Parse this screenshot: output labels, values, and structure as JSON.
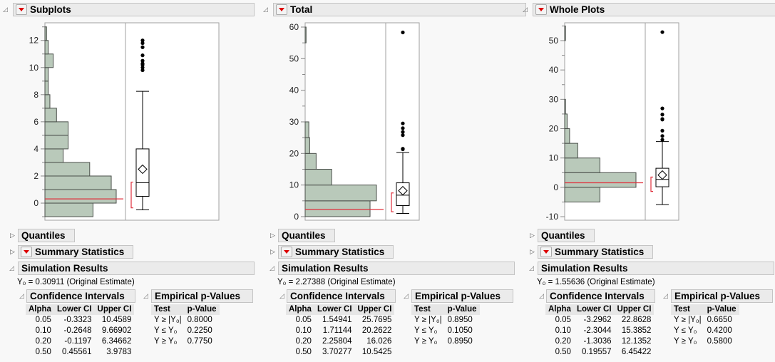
{
  "panels": [
    {
      "title": "Subplots",
      "quantiles_label": "Quantiles",
      "summary_label": "Summary Statistics",
      "simulation_label": "Simulation Results",
      "y0_text": "Y₀ = 0.30911 (Original Estimate)",
      "ci_title": "Confidence Intervals",
      "pv_title": "Empirical p-Values",
      "ci_headers": [
        "Alpha",
        "Lower CI",
        "Upper CI"
      ],
      "ci_rows": [
        [
          "0.05",
          "-0.3323",
          "10.4589"
        ],
        [
          "0.10",
          "-0.2648",
          "9.66902"
        ],
        [
          "0.20",
          "-0.1197",
          "6.34662"
        ],
        [
          "0.50",
          "0.45561",
          "3.9783"
        ]
      ],
      "pv_headers": [
        "Test",
        "p-Value"
      ],
      "pv_rows": [
        [
          "Y ≥ |Y₀|",
          "0.8000"
        ],
        [
          "Y ≤ Y₀",
          "0.2250"
        ],
        [
          "Y ≥ Y₀",
          "0.7750"
        ]
      ]
    },
    {
      "title": "Total",
      "quantiles_label": "Quantiles",
      "summary_label": "Summary Statistics",
      "simulation_label": "Simulation Results",
      "y0_text": "Y₀ = 2.27388 (Original Estimate)",
      "ci_title": "Confidence Intervals",
      "pv_title": "Empirical p-Values",
      "ci_headers": [
        "Alpha",
        "Lower CI",
        "Upper CI"
      ],
      "ci_rows": [
        [
          "0.05",
          "1.54941",
          "25.7695"
        ],
        [
          "0.10",
          "1.71144",
          "20.2622"
        ],
        [
          "0.20",
          "2.25804",
          "16.026"
        ],
        [
          "0.50",
          "3.70277",
          "10.5425"
        ]
      ],
      "pv_headers": [
        "Test",
        "p-Value"
      ],
      "pv_rows": [
        [
          "Y ≥ |Y₀|",
          "0.8950"
        ],
        [
          "Y ≤ Y₀",
          "0.1050"
        ],
        [
          "Y ≥ Y₀",
          "0.8950"
        ]
      ]
    },
    {
      "title": "Whole Plots",
      "quantiles_label": "Quantiles",
      "summary_label": "Summary Statistics",
      "simulation_label": "Simulation Results",
      "y0_text": "Y₀ = 1.55636 (Original Estimate)",
      "ci_title": "Confidence Intervals",
      "pv_title": "Empirical p-Values",
      "ci_headers": [
        "Alpha",
        "Lower CI",
        "Upper CI"
      ],
      "ci_rows": [
        [
          "0.05",
          "-3.2962",
          "22.8628"
        ],
        [
          "0.10",
          "-2.3044",
          "15.3852"
        ],
        [
          "0.20",
          "-1.3036",
          "12.1352"
        ],
        [
          "0.50",
          "0.19557",
          "6.45422"
        ]
      ],
      "pv_headers": [
        "Test",
        "p-Value"
      ],
      "pv_rows": [
        [
          "Y ≥ |Y₀|",
          "0.6650"
        ],
        [
          "Y ≤ Y₀",
          "0.4200"
        ],
        [
          "Y ≥ Y₀",
          "0.5800"
        ]
      ]
    }
  ],
  "colors": {
    "bar_fill": "#b9c9ba",
    "bar_stroke": "#4a4f4a",
    "reference": "#e0303c"
  },
  "chart_data": [
    {
      "type": "bar",
      "orientation": "horizontal-histogram-with-boxplot",
      "ylim": [
        -1.26,
        13.3
      ],
      "yticks": [
        0,
        2,
        4,
        6,
        8,
        10,
        12
      ],
      "minor_tick_step": 1,
      "bins": {
        "start": -1,
        "width": 1,
        "counts": [
          29,
          43,
          40,
          27,
          11,
          14,
          14,
          7,
          3,
          2,
          2,
          5,
          2,
          1
        ]
      },
      "box": {
        "whisker_low": -0.5,
        "q1": 0.5,
        "median": 1.5,
        "q3": 4.0,
        "whisker_high": 8.25,
        "mean": 2.5
      },
      "outliers": [
        9.8,
        10.0,
        10.2,
        10.3,
        10.5,
        10.9,
        11.5,
        11.8,
        12.0
      ],
      "reference_value": 0.30911,
      "shortest_half": [
        -0.35,
        1.55
      ]
    },
    {
      "type": "bar",
      "orientation": "horizontal-histogram-with-boxplot",
      "ylim": [
        -1.13,
        61.35
      ],
      "yticks": [
        0,
        10,
        20,
        30,
        40,
        50,
        60
      ],
      "minor_tick_step": 5,
      "bins": {
        "start": 0,
        "width": 5,
        "counts": [
          71,
          78,
          29,
          12,
          5,
          4,
          0,
          0,
          0,
          0,
          0,
          1
        ]
      },
      "box": {
        "whisker_low": 1.0,
        "q1": 3.5,
        "median": 6.8,
        "q3": 10.7,
        "whisker_high": 20.3,
        "mean": 8.2
      },
      "outliers": [
        21.3,
        21.5,
        25.8,
        26.8,
        28.0,
        29.5,
        58.3
      ],
      "reference_value": 2.27388,
      "shortest_half": [
        1.55,
        7.5
      ]
    },
    {
      "type": "bar",
      "orientation": "horizontal-histogram-with-boxplot",
      "ylim": [
        -11.2,
        56.07
      ],
      "yticks": [
        -10,
        0,
        10,
        20,
        30,
        40,
        50
      ],
      "minor_tick_step": 5,
      "bins": {
        "start": -5,
        "width": 5,
        "counts": [
          43,
          87,
          43,
          16,
          6,
          3,
          1,
          0,
          0,
          0,
          0,
          1
        ]
      },
      "box": {
        "whisker_low": -5.9,
        "q1": 0.2,
        "median": 2.7,
        "q3": 6.5,
        "whisker_high": 15.6,
        "mean": 4.2
      },
      "outliers": [
        16.2,
        17.5,
        19.3,
        23.1,
        23.3,
        24.8,
        26.9,
        52.9
      ],
      "reference_value": 1.55636,
      "shortest_half": [
        -1.4,
        3.5
      ]
    }
  ]
}
